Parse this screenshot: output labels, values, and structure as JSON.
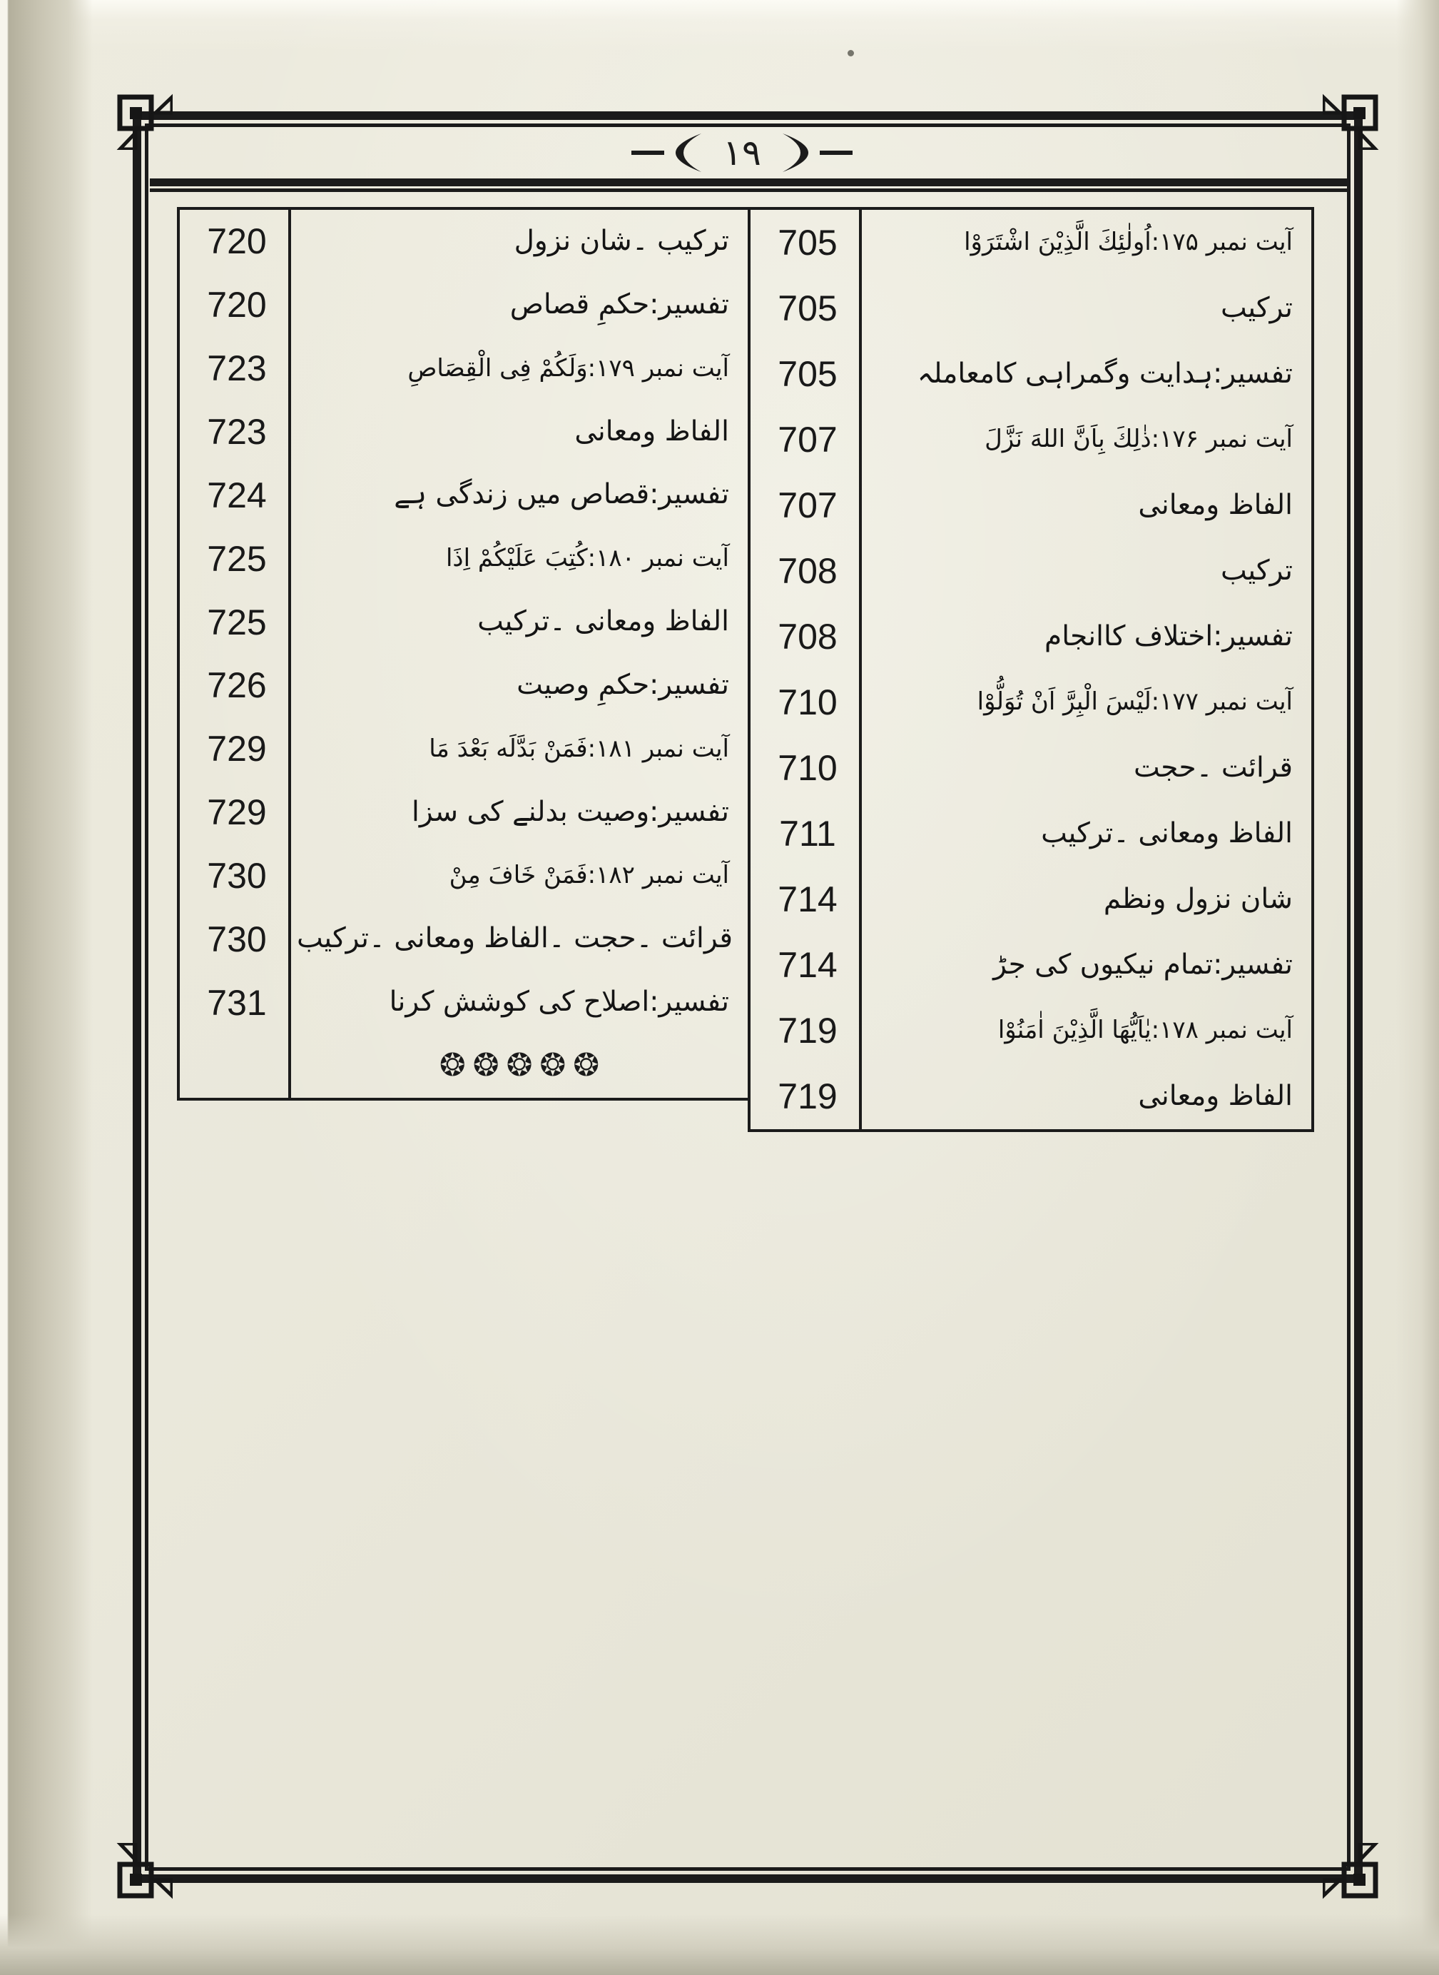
{
  "header": {
    "number": "۱۹"
  },
  "colors": {
    "paper": "#eae8db",
    "ink": "#1b1b1b"
  },
  "icons": {
    "header_ornament": "leaf-flourish-icon",
    "corner_ornament": "border-corner-square-icon",
    "ornament_row_glyph": "eight-pointed-star-icon"
  },
  "toc": {
    "right_section": {
      "rows": [
        {
          "page": "705",
          "title": "آیت نمبر ۱۷۵:اُولٰئِكَ الَّذِیْنَ اشْتَرَوْا",
          "kind": "verse"
        },
        {
          "page": "705",
          "title": "ترکیب",
          "kind": "plain"
        },
        {
          "page": "705",
          "title": "تفسیر:ہدایت وگمراہی کامعاملہ",
          "kind": "plain"
        },
        {
          "page": "707",
          "title": "آیت نمبر ۱۷۶:ذٰلِكَ بِاَنَّ اللهَ نَزَّلَ",
          "kind": "verse"
        },
        {
          "page": "707",
          "title": "الفاظ ومعانی",
          "kind": "plain"
        },
        {
          "page": "708",
          "title": "ترکیب",
          "kind": "plain"
        },
        {
          "page": "708",
          "title": "تفسیر:اختلاف کاانجام",
          "kind": "plain"
        },
        {
          "page": "710",
          "title": "آیت نمبر ۱۷۷:لَیْسَ الْبِرَّ اَنْ تُوَلُّوْا",
          "kind": "verse"
        },
        {
          "page": "710",
          "title": "قرائت ۔حجت",
          "kind": "plain"
        },
        {
          "page": "711",
          "title": "الفاظ ومعانی ۔ترکیب",
          "kind": "plain"
        },
        {
          "page": "714",
          "title": "شان نزول ونظم",
          "kind": "plain"
        },
        {
          "page": "714",
          "title": "تفسیر:تمام نیکیوں کی جڑ",
          "kind": "plain"
        },
        {
          "page": "719",
          "title": "آیت نمبر ۱۷۸:یٰاَیُّهَا الَّذِیْنَ اٰمَنُوْا",
          "kind": "verse"
        },
        {
          "page": "719",
          "title": "الفاظ ومعانی",
          "kind": "plain"
        }
      ]
    },
    "left_section": {
      "rows": [
        {
          "page": "720",
          "title": "ترکیب ۔شان نزول",
          "kind": "plain"
        },
        {
          "page": "720",
          "title": "تفسیر:حکمِ قصاص",
          "kind": "plain"
        },
        {
          "page": "723",
          "title": "آیت نمبر ۱۷۹:وَلَكُمْ فِی الْقِصَاصِ",
          "kind": "verse"
        },
        {
          "page": "723",
          "title": "الفاظ ومعانی",
          "kind": "plain"
        },
        {
          "page": "724",
          "title": "تفسیر:قصاص میں زندگی ہے",
          "kind": "plain"
        },
        {
          "page": "725",
          "title": "آیت نمبر ۱۸۰:كُتِبَ عَلَیْكُمْ اِذَا",
          "kind": "verse"
        },
        {
          "page": "725",
          "title": "الفاظ ومعانی ۔ترکیب",
          "kind": "plain"
        },
        {
          "page": "726",
          "title": "تفسیر:حکمِ وصیت",
          "kind": "plain"
        },
        {
          "page": "729",
          "title": "آیت نمبر ۱۸۱:فَمَنْ بَدَّلَه بَعْدَ مَا",
          "kind": "verse"
        },
        {
          "page": "729",
          "title": "تفسیر:وصیت بدلنے کی سزا",
          "kind": "plain"
        },
        {
          "page": "730",
          "title": "آیت نمبر ۱۸۲:فَمَنْ خَافَ مِنْ",
          "kind": "verse"
        },
        {
          "page": "730",
          "title": "قرائت ۔حجت ۔الفاظ ومعانی ۔ترکیب",
          "kind": "plain"
        },
        {
          "page": "731",
          "title": "تفسیر:اصلاح کی کوشش کرنا",
          "kind": "plain"
        }
      ],
      "ornament_row": "❂❂❂❂❂"
    }
  }
}
